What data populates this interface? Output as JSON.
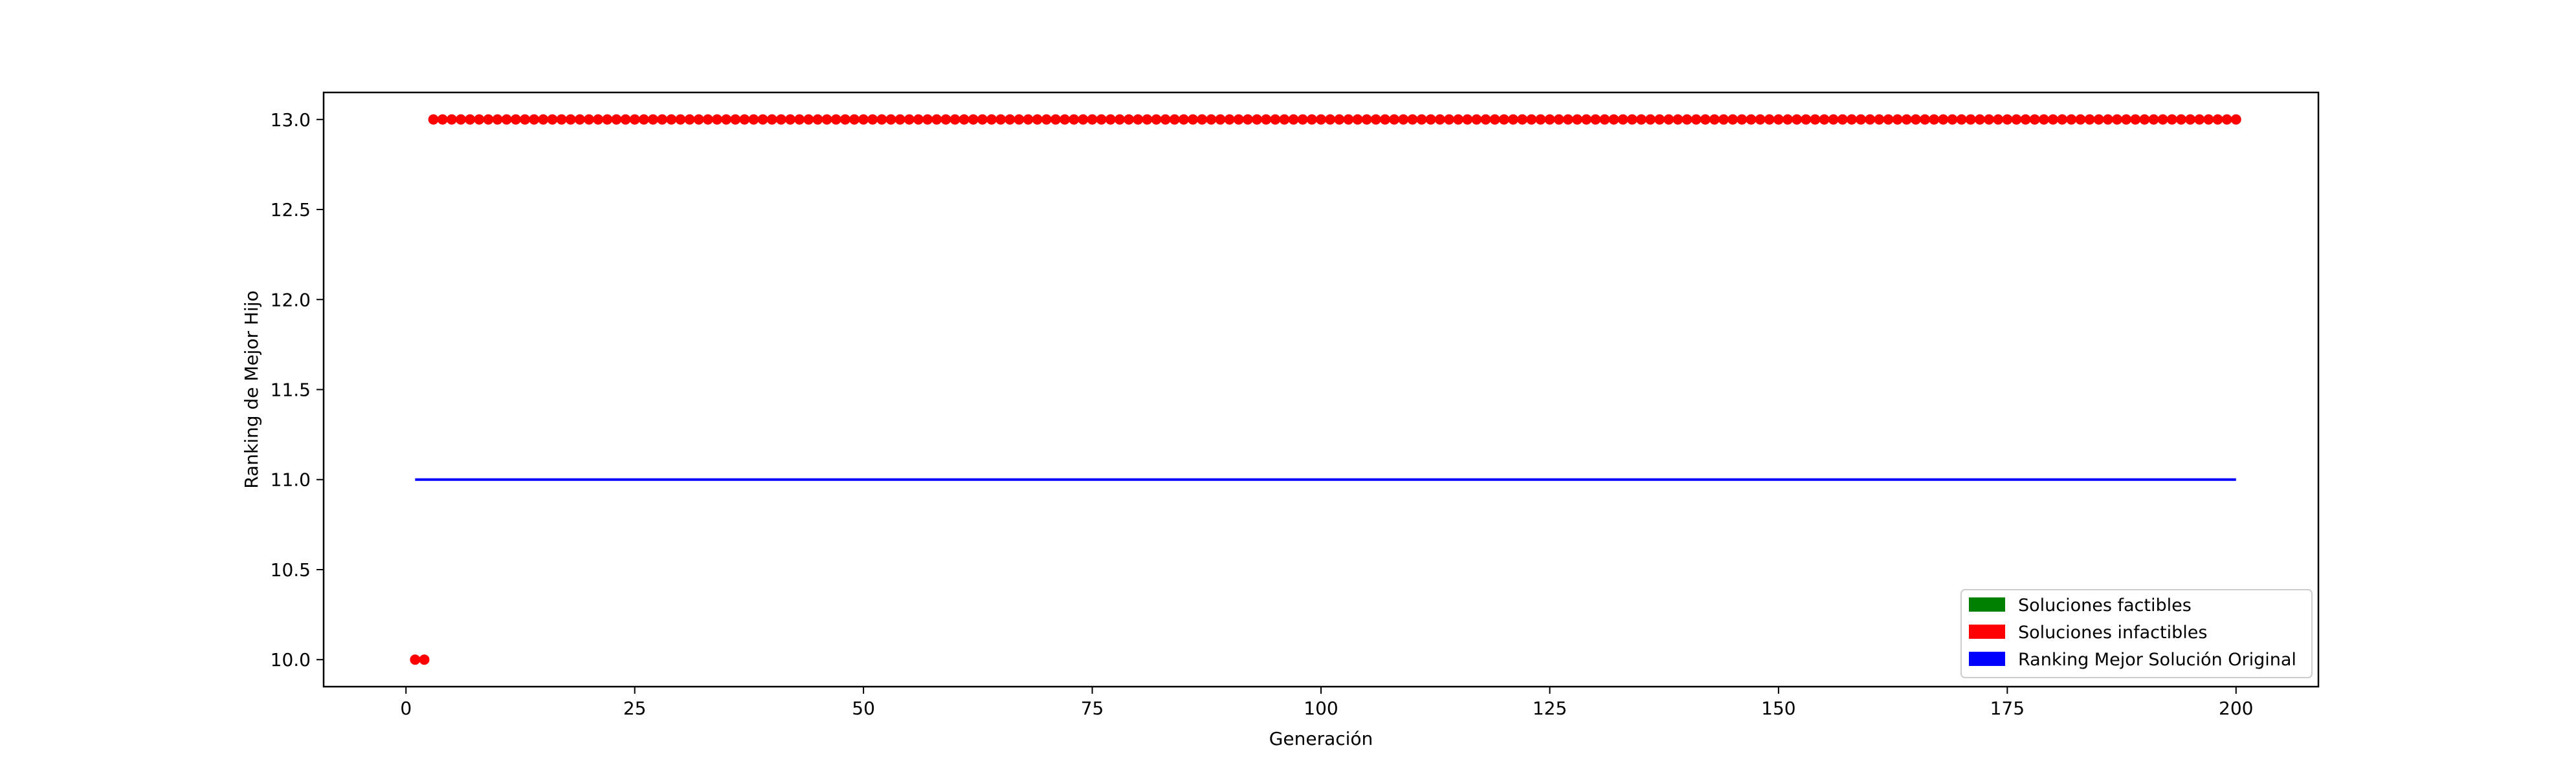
{
  "chart_data": {
    "type": "scatter",
    "xlabel": "Generación",
    "ylabel": "Ranking de Mejor Hijo",
    "xlim": [
      -9,
      209
    ],
    "ylim": [
      9.85,
      13.15
    ],
    "xticks": [
      0,
      25,
      50,
      75,
      100,
      125,
      150,
      175,
      200
    ],
    "yticks": [
      10.0,
      10.5,
      11.0,
      11.5,
      12.0,
      12.5,
      13.0
    ],
    "yticklabels": [
      "10.0",
      "10.5",
      "11.0",
      "11.5",
      "12.0",
      "12.5",
      "13.0"
    ],
    "grid": false,
    "legend_position": "lower-right",
    "legend": [
      {
        "label": "Soluciones factibles",
        "color": "#008000"
      },
      {
        "label": "Soluciones infactibles",
        "color": "#ff0000"
      },
      {
        "label": "Ranking Mejor Solución Original",
        "color": "#0000ff"
      }
    ],
    "series": [
      {
        "kind": "scatter",
        "color": "#ff0000",
        "points": [
          {
            "x": 1,
            "y": 10.0
          },
          {
            "x": 2,
            "y": 10.0
          },
          {
            "x_from": 3,
            "x_to": 200,
            "x_step": 1,
            "y": 13.0
          }
        ]
      },
      {
        "kind": "line",
        "color": "#0000ff",
        "x": [
          1,
          200
        ],
        "y": [
          11.0,
          11.0
        ]
      }
    ]
  }
}
